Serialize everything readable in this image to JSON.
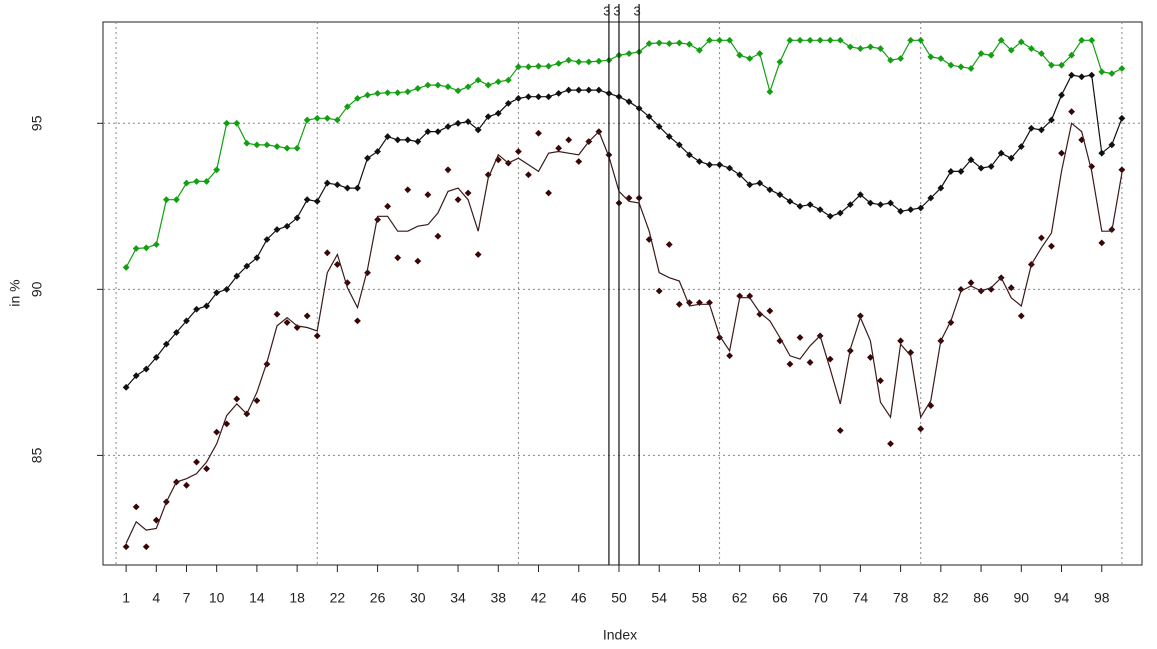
{
  "chart_data": {
    "type": "line",
    "xlabel": "Index",
    "ylabel": "in %",
    "xlim": [
      -1.3,
      102
    ],
    "ylim": [
      81.7,
      98.05
    ],
    "xticks": [
      1,
      4,
      7,
      10,
      14,
      18,
      22,
      26,
      30,
      34,
      38,
      42,
      46,
      50,
      54,
      58,
      62,
      66,
      70,
      74,
      78,
      82,
      86,
      90,
      94,
      98
    ],
    "yticks": [
      85,
      90,
      95
    ],
    "xgrid": [
      0,
      20,
      40,
      60,
      80,
      100
    ],
    "grid": true,
    "vlines": [
      {
        "x": 49,
        "label": "3"
      },
      {
        "x": 50,
        "label": "3"
      },
      {
        "x": 52,
        "label": "3"
      }
    ],
    "vline_label_color": "#6b1010",
    "series": [
      {
        "color": "#12a012",
        "points": true,
        "line": true,
        "values": [
          90.66,
          91.23,
          91.25,
          91.35,
          92.7,
          92.7,
          93.2,
          93.25,
          93.25,
          93.6,
          95.0,
          95.0,
          94.4,
          94.35,
          94.35,
          94.3,
          94.25,
          94.25,
          95.1,
          95.15,
          95.15,
          95.1,
          95.5,
          95.75,
          95.85,
          95.9,
          95.92,
          95.92,
          95.95,
          96.05,
          96.15,
          96.15,
          96.1,
          95.98,
          96.1,
          96.3,
          96.15,
          96.25,
          96.3,
          96.7,
          96.7,
          96.72,
          96.72,
          96.8,
          96.9,
          96.85,
          96.85,
          96.87,
          96.9,
          97.05,
          97.1,
          97.15,
          97.4,
          97.42,
          97.4,
          97.42,
          97.38,
          97.2,
          97.5,
          97.5,
          97.5,
          97.05,
          96.95,
          97.1,
          95.95,
          96.85,
          97.5,
          97.5,
          97.5,
          97.5,
          97.5,
          97.5,
          97.3,
          97.25,
          97.3,
          97.25,
          96.9,
          96.95,
          97.5,
          97.5,
          97.0,
          96.95,
          96.75,
          96.7,
          96.65,
          97.1,
          97.05,
          97.5,
          97.2,
          97.45,
          97.25,
          97.1,
          96.75,
          96.75,
          97.05,
          97.5,
          97.5,
          96.55,
          96.5,
          96.65
        ]
      },
      {
        "color": "#111111",
        "points": true,
        "line": true,
        "values": [
          87.05,
          87.4,
          87.6,
          87.95,
          88.35,
          88.7,
          89.05,
          89.4,
          89.5,
          89.9,
          90.0,
          90.4,
          90.7,
          90.95,
          91.5,
          91.8,
          91.9,
          92.15,
          92.7,
          92.65,
          93.2,
          93.15,
          93.05,
          93.05,
          93.95,
          94.15,
          94.6,
          94.5,
          94.5,
          94.45,
          94.75,
          94.75,
          94.9,
          95.0,
          95.05,
          94.8,
          95.2,
          95.3,
          95.6,
          95.75,
          95.8,
          95.8,
          95.8,
          95.9,
          96.0,
          96.0,
          96.0,
          96.0,
          95.9,
          95.8,
          95.65,
          95.45,
          95.2,
          94.9,
          94.6,
          94.35,
          94.05,
          93.85,
          93.75,
          93.75,
          93.65,
          93.45,
          93.15,
          93.2,
          93.0,
          92.85,
          92.65,
          92.5,
          92.55,
          92.4,
          92.2,
          92.3,
          92.55,
          92.85,
          92.6,
          92.55,
          92.6,
          92.35,
          92.4,
          92.45,
          92.75,
          93.05,
          93.55,
          93.55,
          93.9,
          93.65,
          93.7,
          94.1,
          93.95,
          94.3,
          94.85,
          94.8,
          95.1,
          95.85,
          96.45,
          96.4,
          96.45,
          94.1,
          94.35,
          95.15
        ]
      },
      {
        "color": "#3a0505",
        "points": true,
        "line": false,
        "values": [
          82.25,
          83.45,
          82.25,
          83.05,
          83.6,
          84.2,
          84.1,
          84.8,
          84.6,
          85.7,
          85.95,
          86.7,
          86.25,
          86.65,
          87.75,
          89.25,
          89.0,
          88.85,
          89.2,
          88.6,
          91.1,
          90.75,
          90.2,
          89.05,
          90.5,
          92.1,
          92.5,
          90.95,
          93.0,
          90.85,
          92.85,
          91.6,
          93.6,
          92.7,
          92.9,
          91.05,
          93.45,
          93.9,
          93.8,
          94.15,
          93.45,
          94.7,
          92.9,
          94.25,
          94.5,
          93.85,
          94.45,
          94.75,
          94.05,
          92.6,
          92.75,
          92.75,
          91.5,
          89.95,
          91.35,
          89.55,
          89.6,
          89.6,
          89.6,
          88.55,
          88.0,
          89.8,
          89.8,
          89.25,
          89.35,
          88.45,
          87.75,
          88.55,
          87.8,
          88.6,
          87.9,
          85.75,
          88.15,
          89.2,
          87.95,
          87.25,
          85.35,
          88.45,
          88.1,
          85.8,
          86.5,
          88.45,
          89.0,
          90.0,
          90.2,
          89.95,
          90.0,
          90.35,
          90.05,
          89.2,
          90.75,
          91.55,
          91.3,
          94.1,
          95.35,
          94.5,
          93.7,
          91.4,
          91.8,
          93.6
        ]
      },
      {
        "color": "#3b1a1a",
        "points": false,
        "line": true,
        "values": [
          82.35,
          83.0,
          82.75,
          82.8,
          83.6,
          84.2,
          84.3,
          84.45,
          84.8,
          85.35,
          86.2,
          86.55,
          86.25,
          86.9,
          87.8,
          88.9,
          89.15,
          88.9,
          88.85,
          88.75,
          90.5,
          91.05,
          90.05,
          89.45,
          90.6,
          92.2,
          92.2,
          91.75,
          91.75,
          91.9,
          91.95,
          92.3,
          92.95,
          93.05,
          92.7,
          91.75,
          93.35,
          94.05,
          93.8,
          93.95,
          93.75,
          93.55,
          94.1,
          94.15,
          94.1,
          94.05,
          94.45,
          94.75,
          94.0,
          92.95,
          92.65,
          92.6,
          91.75,
          90.5,
          90.35,
          90.25,
          89.5,
          89.55,
          89.55,
          88.6,
          88.15,
          89.75,
          89.75,
          89.3,
          89.05,
          88.55,
          88.0,
          87.9,
          88.3,
          88.6,
          87.6,
          86.55,
          88.2,
          89.15,
          88.45,
          86.6,
          86.15,
          88.35,
          88.0,
          86.15,
          86.65,
          88.45,
          89.05,
          89.95,
          90.1,
          89.95,
          90.05,
          90.35,
          89.75,
          89.5,
          90.75,
          91.25,
          91.7,
          93.55,
          95.0,
          94.75,
          93.55,
          91.75,
          91.75,
          93.5
        ]
      }
    ]
  }
}
